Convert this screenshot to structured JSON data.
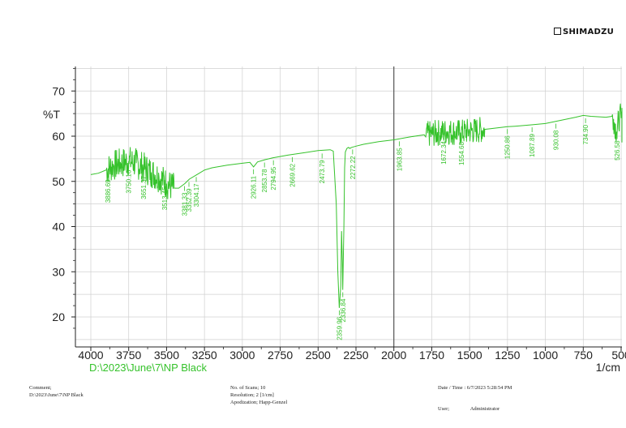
{
  "logo": "SHIMADZU",
  "colors": {
    "spectrum": "#35c22b",
    "axis": "#222222",
    "grid": "#d0d0d0",
    "marker": "#555555"
  },
  "chart_data": {
    "type": "line",
    "title": "",
    "ylabel": "%T",
    "xlabel_unit": "1/cm",
    "file_path": "D:\\2023\\June\\7\\NP Black",
    "xlim": [
      4000,
      400
    ],
    "ylim": [
      15,
      77
    ],
    "x_ticks": [
      4000,
      3750,
      3500,
      3250,
      3000,
      2750,
      2500,
      2250,
      2000,
      1750,
      1500,
      1250,
      1000,
      750,
      500
    ],
    "y_ticks": [
      20,
      30,
      40,
      50,
      60,
      70
    ],
    "grid": true,
    "marker_line_x": 2000,
    "series": [
      {
        "x": [
          4000,
          3950,
          3900,
          3850,
          3800,
          3750,
          3700,
          3650,
          3600,
          3550,
          3500,
          3450,
          3420,
          3380,
          3350,
          3300,
          3250,
          3200,
          3100,
          3000,
          2950,
          2926,
          2900,
          2850,
          2800,
          2700,
          2600,
          2500,
          2420,
          2400,
          2380,
          2370,
          2360,
          2350,
          2345,
          2340,
          2337,
          2330,
          2325,
          2320,
          2310,
          2300,
          2290,
          2280,
          2250,
          2200,
          2100,
          2000,
          1900,
          1800,
          1750,
          1700,
          1650,
          1600,
          1560,
          1500,
          1450,
          1400,
          1300,
          1250,
          1200,
          1100,
          1000,
          900,
          800,
          750,
          700,
          600,
          550,
          530,
          510,
          500,
          450,
          400
        ],
        "y": [
          51.5,
          51.8,
          52.5,
          53.5,
          54,
          54.5,
          54,
          53,
          52,
          51,
          49.5,
          48.5,
          48.5,
          49.5,
          50.5,
          51.5,
          52.5,
          53,
          53.6,
          54,
          54.2,
          53.2,
          54.3,
          54.8,
          55.2,
          55.8,
          56.3,
          56.8,
          57,
          56.7,
          45,
          30,
          22,
          27,
          39,
          32,
          26,
          40,
          53,
          56.5,
          57.3,
          57.5,
          57.3,
          57.5,
          57.8,
          58.2,
          58.8,
          59.2,
          59.8,
          60.3,
          60.5,
          60.8,
          61,
          60.9,
          60.8,
          61.1,
          61.3,
          61.5,
          61.9,
          62.1,
          62.2,
          62.5,
          62.8,
          63.5,
          64.2,
          64.6,
          64.4,
          64.2,
          63.8,
          61,
          64.5,
          64,
          62.5,
          60.5
        ]
      }
    ],
    "noise_regions": [
      {
        "from": 3900,
        "to": 3450,
        "amplitude": 3.5
      },
      {
        "from": 1790,
        "to": 1400,
        "amplitude": 3
      },
      {
        "from": 560,
        "to": 400,
        "amplitude": 3
      }
    ],
    "peak_labels": [
      {
        "x": 3886.69,
        "y": 52.4,
        "label": "3886.69"
      },
      {
        "x": 3750.16,
        "y": 54.5,
        "label": "3750.16"
      },
      {
        "x": 3651.37,
        "y": 53.2,
        "label": "3651.37"
      },
      {
        "x": 3513.45,
        "y": 50.8,
        "label": "3513.45"
      },
      {
        "x": 3381.33,
        "y": 49.5,
        "label": "3381.33"
      },
      {
        "x": 3352.39,
        "y": 50.4,
        "label": "3352.39"
      },
      {
        "x": 3304.17,
        "y": 51.5,
        "label": "3304.17"
      },
      {
        "x": 2926.11,
        "y": 53.2,
        "label": "2926.11"
      },
      {
        "x": 2853.78,
        "y": 54.7,
        "label": "2853.78"
      },
      {
        "x": 2794.95,
        "y": 55.2,
        "label": "2794.95"
      },
      {
        "x": 2669.62,
        "y": 55.9,
        "label": "2669.62"
      },
      {
        "x": 2473.79,
        "y": 56.7,
        "label": "2473.79"
      },
      {
        "x": 2359.96,
        "y": 22,
        "label": "2359.96"
      },
      {
        "x": 2336.84,
        "y": 26,
        "label": "2336.84"
      },
      {
        "x": 2272.22,
        "y": 57.6,
        "label": "2272.22"
      },
      {
        "x": 1963.85,
        "y": 59.4,
        "label": "1963.85"
      },
      {
        "x": 1672.34,
        "y": 60.9,
        "label": "1672.34"
      },
      {
        "x": 1554.68,
        "y": 60.7,
        "label": "1554.68"
      },
      {
        "x": 1250.86,
        "y": 62.1,
        "label": "1250.86"
      },
      {
        "x": 1087.89,
        "y": 62.5,
        "label": "1087.89"
      },
      {
        "x": 930.08,
        "y": 63.3,
        "label": "930.08"
      },
      {
        "x": 734.9,
        "y": 64.5,
        "label": "734.90"
      },
      {
        "x": 526.58,
        "y": 61,
        "label": "526.58"
      }
    ]
  },
  "footer": {
    "comment_label": "Comment;",
    "comment_value": "D:\\2023\\June\\7\\NP Black",
    "scans": "No. of Scans; 10",
    "resolution": "Resolution;   2 [1/cm]",
    "apodization": "Apodization;   Happ-Genzel",
    "datetime": "Date / Time : 6/7/2023   5:28:54 PM",
    "user_label": "User;",
    "user_value": "Administrator"
  }
}
